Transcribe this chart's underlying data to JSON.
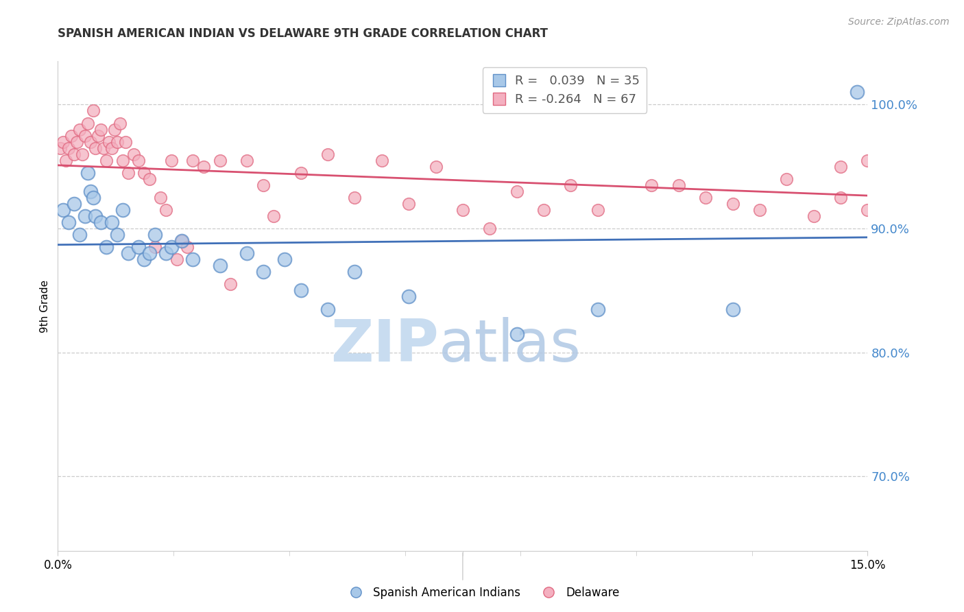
{
  "title": "SPANISH AMERICAN INDIAN VS DELAWARE 9TH GRADE CORRELATION CHART",
  "source": "Source: ZipAtlas.com",
  "ylabel": "9th Grade",
  "right_yticks": [
    70.0,
    80.0,
    90.0,
    100.0
  ],
  "ylim_low": 64.0,
  "ylim_high": 103.5,
  "xlim_low": 0.0,
  "xlim_high": 15.0,
  "blue_R": 0.039,
  "blue_N": 35,
  "pink_R": -0.264,
  "pink_N": 67,
  "blue_color": "#A8C8E8",
  "pink_color": "#F4B0C0",
  "blue_edge_color": "#6090C8",
  "pink_edge_color": "#E06880",
  "blue_line_color": "#4070B8",
  "pink_line_color": "#D85070",
  "legend_label_blue": "Spanish American Indians",
  "legend_label_pink": "Delaware",
  "blue_x": [
    0.1,
    0.2,
    0.3,
    0.4,
    0.5,
    0.55,
    0.6,
    0.65,
    0.7,
    0.8,
    0.9,
    1.0,
    1.1,
    1.2,
    1.3,
    1.5,
    1.6,
    1.7,
    1.8,
    2.0,
    2.1,
    2.3,
    2.5,
    3.0,
    3.5,
    3.8,
    4.2,
    4.5,
    5.0,
    5.5,
    6.5,
    8.5,
    10.0,
    12.5,
    14.8
  ],
  "blue_y": [
    91.5,
    90.5,
    92.0,
    89.5,
    91.0,
    94.5,
    93.0,
    92.5,
    91.0,
    90.5,
    88.5,
    90.5,
    89.5,
    91.5,
    88.0,
    88.5,
    87.5,
    88.0,
    89.5,
    88.0,
    88.5,
    89.0,
    87.5,
    87.0,
    88.0,
    86.5,
    87.5,
    85.0,
    83.5,
    86.5,
    84.5,
    81.5,
    83.5,
    83.5,
    101.0
  ],
  "pink_x": [
    0.05,
    0.1,
    0.15,
    0.2,
    0.25,
    0.3,
    0.35,
    0.4,
    0.45,
    0.5,
    0.55,
    0.6,
    0.65,
    0.7,
    0.75,
    0.8,
    0.85,
    0.9,
    0.95,
    1.0,
    1.05,
    1.1,
    1.15,
    1.2,
    1.25,
    1.3,
    1.4,
    1.5,
    1.6,
    1.7,
    1.8,
    1.9,
    2.0,
    2.1,
    2.2,
    2.3,
    2.4,
    2.5,
    2.7,
    3.0,
    3.2,
    3.5,
    3.8,
    4.0,
    4.5,
    5.0,
    5.5,
    6.0,
    6.5,
    7.0,
    7.5,
    8.0,
    8.5,
    9.0,
    9.5,
    10.0,
    11.0,
    12.0,
    13.0,
    14.0,
    14.5,
    15.0,
    15.0,
    14.5,
    13.5,
    12.5,
    11.5
  ],
  "pink_y": [
    96.5,
    97.0,
    95.5,
    96.5,
    97.5,
    96.0,
    97.0,
    98.0,
    96.0,
    97.5,
    98.5,
    97.0,
    99.5,
    96.5,
    97.5,
    98.0,
    96.5,
    95.5,
    97.0,
    96.5,
    98.0,
    97.0,
    98.5,
    95.5,
    97.0,
    94.5,
    96.0,
    95.5,
    94.5,
    94.0,
    88.5,
    92.5,
    91.5,
    95.5,
    87.5,
    89.0,
    88.5,
    95.5,
    95.0,
    95.5,
    85.5,
    95.5,
    93.5,
    91.0,
    94.5,
    96.0,
    92.5,
    95.5,
    92.0,
    95.0,
    91.5,
    90.0,
    93.0,
    91.5,
    93.5,
    91.5,
    93.5,
    92.5,
    91.5,
    91.0,
    95.0,
    91.5,
    95.5,
    92.5,
    94.0,
    92.0,
    93.5
  ],
  "watermark_zip_color": "#C8DCF0",
  "watermark_atlas_color": "#B0C8E4",
  "grid_color": "#CCCCCC",
  "spine_color": "#CCCCCC",
  "right_tick_color": "#4488CC",
  "title_color": "#333333",
  "source_color": "#999999"
}
